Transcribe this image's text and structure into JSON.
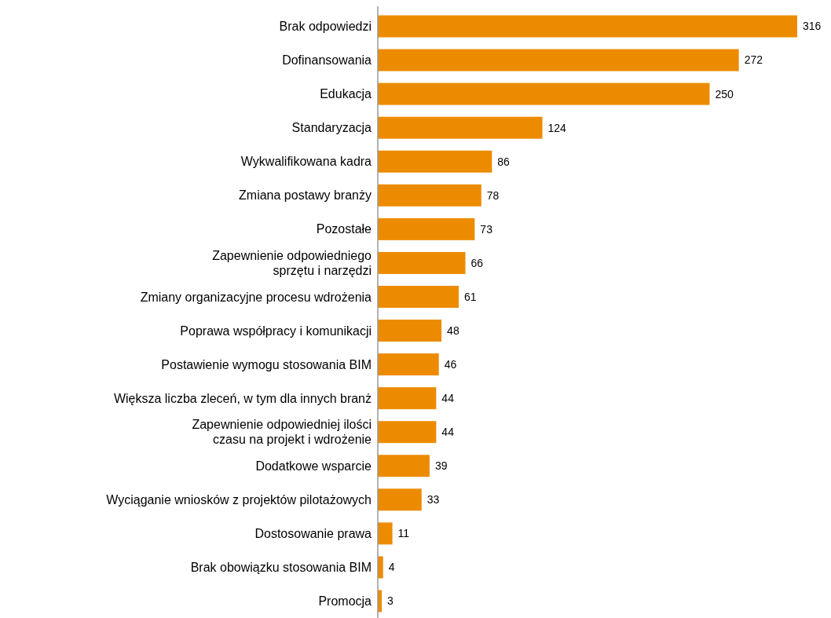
{
  "chart_data": {
    "type": "bar",
    "orientation": "horizontal",
    "data_labels": true,
    "color": "#ed8b00",
    "categories": [
      "Brak odpowiedzi",
      "Dofinansowania",
      "Edukacja",
      "Standaryzacja",
      "Wykwalifikowana kadra",
      "Zmiana postawy branży",
      "Pozostałe",
      "Zapewnienie odpowiedniego\nsprzętu i narzędzi",
      "Zmiany organizacyjne procesu wdrożenia",
      "Poprawa współpracy i komunikacji",
      "Postawienie wymogu stosowania BIM",
      "Większa liczba zleceń, w tym dla innych branż",
      "Zapewnienie odpowiedniej ilości\nczasu na projekt i wdrożenie",
      "Dodatkowe wsparcie",
      "Wyciąganie wniosków z projektów pilotażowych",
      "Dostosowanie prawa",
      "Brak obowiązku stosowania BIM",
      "Promocja"
    ],
    "values": [
      316,
      272,
      250,
      124,
      86,
      78,
      73,
      66,
      61,
      48,
      46,
      44,
      44,
      39,
      33,
      11,
      4,
      3
    ]
  }
}
